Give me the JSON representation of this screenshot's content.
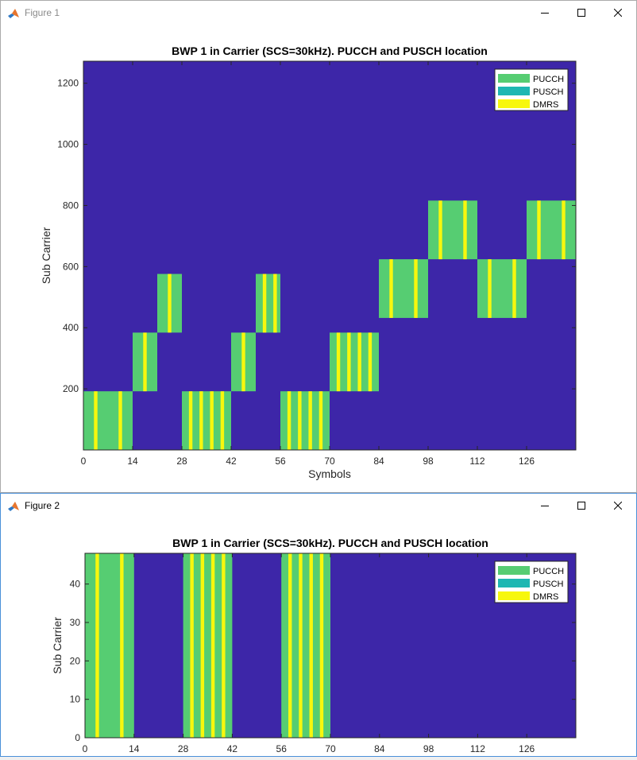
{
  "windows": [
    {
      "title": "Figure 1"
    },
    {
      "title": "Figure 2"
    }
  ],
  "chart_data": [
    {
      "type": "heatmap",
      "title": "BWP 1 in Carrier (SCS=30kHz). PUCCH and PUSCH location",
      "xlabel": "Symbols",
      "ylabel": "Sub Carrier",
      "xlim": [
        0,
        140
      ],
      "ylim": [
        0,
        1272
      ],
      "xticks": [
        0,
        14,
        28,
        42,
        56,
        70,
        84,
        98,
        112,
        126
      ],
      "yticks": [
        200,
        400,
        600,
        800,
        1000,
        1200
      ],
      "grid": false,
      "legend_position": "top-right",
      "legend": [
        {
          "label": "PUCCH",
          "color": "#56cd72"
        },
        {
          "label": "PUSCH",
          "color": "#1eb7b2"
        },
        {
          "label": "DMRS",
          "color": "#f7f70d"
        }
      ],
      "background_color": "#3d26a8",
      "blocks": [
        {
          "x0": 0,
          "x1": 14,
          "y0": 0,
          "y1": 192,
          "dmrs": [
            3,
            10
          ]
        },
        {
          "x0": 14,
          "x1": 21,
          "y0": 192,
          "y1": 384,
          "dmrs": [
            17
          ]
        },
        {
          "x0": 21,
          "x1": 28,
          "y0": 384,
          "y1": 576,
          "dmrs": [
            24
          ]
        },
        {
          "x0": 28,
          "x1": 42,
          "y0": 0,
          "y1": 192,
          "dmrs": [
            30,
            33,
            36,
            39
          ]
        },
        {
          "x0": 42,
          "x1": 49,
          "y0": 192,
          "y1": 384,
          "dmrs": [
            45
          ]
        },
        {
          "x0": 49,
          "x1": 56,
          "y0": 384,
          "y1": 576,
          "dmrs": [
            51,
            54
          ]
        },
        {
          "x0": 56,
          "x1": 70,
          "y0": 0,
          "y1": 192,
          "dmrs": [
            58,
            61,
            64,
            67
          ]
        },
        {
          "x0": 70,
          "x1": 84,
          "y0": 192,
          "y1": 384,
          "dmrs": [
            72,
            75,
            78,
            81
          ]
        },
        {
          "x0": 84,
          "x1": 98,
          "y0": 432,
          "y1": 624,
          "dmrs": [
            87,
            94
          ]
        },
        {
          "x0": 98,
          "x1": 112,
          "y0": 624,
          "y1": 816,
          "dmrs": [
            101,
            108
          ]
        },
        {
          "x0": 112,
          "x1": 126,
          "y0": 432,
          "y1": 624,
          "dmrs": [
            115,
            122
          ]
        },
        {
          "x0": 126,
          "x1": 140,
          "y0": 624,
          "y1": 816,
          "dmrs": [
            129,
            136
          ]
        }
      ]
    },
    {
      "type": "heatmap",
      "title": "BWP 1 in Carrier (SCS=30kHz). PUCCH and PUSCH location",
      "xlabel": "Symbols",
      "ylabel": "Sub Carrier",
      "xlim": [
        0,
        140
      ],
      "ylim": [
        0,
        48
      ],
      "xticks": [
        0,
        14,
        28,
        42,
        56,
        70,
        84,
        98,
        112,
        126
      ],
      "yticks": [
        0,
        10,
        20,
        30,
        40
      ],
      "grid": false,
      "legend_position": "top-right",
      "legend": [
        {
          "label": "PUCCH",
          "color": "#56cd72"
        },
        {
          "label": "PUSCH",
          "color": "#1eb7b2"
        },
        {
          "label": "DMRS",
          "color": "#f7f70d"
        }
      ],
      "background_color": "#3d26a8",
      "blocks": [
        {
          "x0": 0,
          "x1": 14,
          "y0": 0,
          "y1": 48,
          "dmrs": [
            3,
            10
          ]
        },
        {
          "x0": 28,
          "x1": 42,
          "y0": 0,
          "y1": 48,
          "dmrs": [
            30,
            33,
            36,
            39
          ]
        },
        {
          "x0": 56,
          "x1": 70,
          "y0": 0,
          "y1": 48,
          "dmrs": [
            58,
            61,
            64,
            67
          ]
        }
      ]
    }
  ]
}
